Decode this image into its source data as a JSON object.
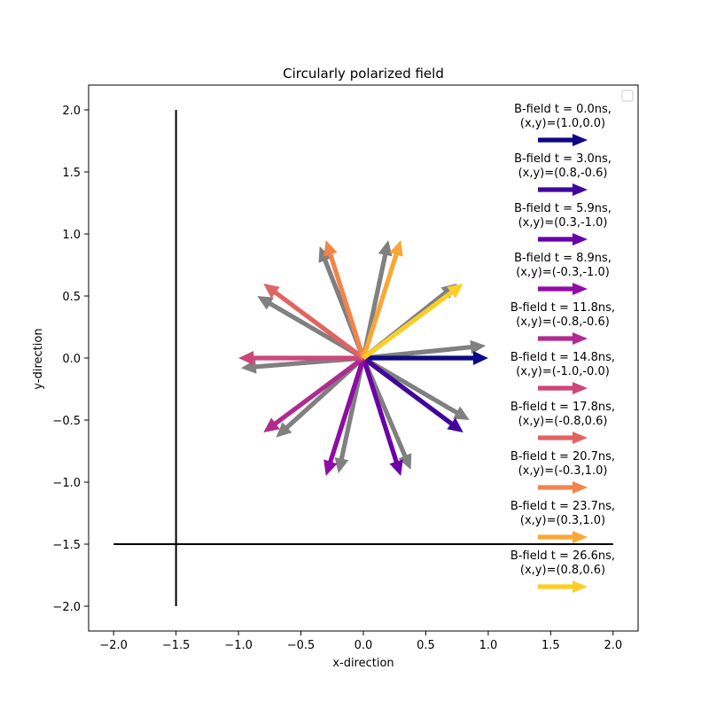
{
  "chart_data": {
    "type": "quiver",
    "title": "Circularly polarized field",
    "xlabel": "x-direction",
    "ylabel": "y-direction",
    "xlim": [
      -2.2,
      2.2
    ],
    "ylim": [
      -2.2,
      2.2
    ],
    "xticks": [
      -2.0,
      -1.5,
      -1.0,
      -0.5,
      0.0,
      0.5,
      1.0,
      1.5,
      2.0
    ],
    "yticks": [
      -2.0,
      -1.5,
      -1.0,
      -0.5,
      0.0,
      0.5,
      1.0,
      1.5,
      2.0
    ],
    "xtick_labels": [
      "−2.0",
      "−1.5",
      "−1.0",
      "−0.5",
      "0.0",
      "0.5",
      "1.0",
      "1.5",
      "2.0"
    ],
    "ytick_labels": [
      "−2.0",
      "−1.5",
      "−1.0",
      "−0.5",
      "0.0",
      "0.5",
      "1.0",
      "1.5",
      "2.0"
    ],
    "grid": false,
    "axis_lines": [
      {
        "x": [
          -1.5,
          -1.5
        ],
        "y": [
          -2.0,
          2.0
        ],
        "color": "#000000"
      },
      {
        "x": [
          -2.0,
          2.0
        ],
        "y": [
          -1.5,
          -1.5
        ],
        "color": "#000000"
      }
    ],
    "gray_arrows": [
      {
        "u": 0.98,
        "v": 0.1
      },
      {
        "u": 0.75,
        "v": 0.6
      },
      {
        "u": 0.2,
        "v": 0.95
      },
      {
        "u": -0.35,
        "v": 0.9
      },
      {
        "u": -0.85,
        "v": 0.5
      },
      {
        "u": -0.98,
        "v": -0.08
      },
      {
        "u": -0.7,
        "v": -0.64
      },
      {
        "u": -0.2,
        "v": -0.93
      },
      {
        "u": 0.38,
        "v": -0.9
      },
      {
        "u": 0.85,
        "v": -0.5
      }
    ],
    "gray_color": "#808080",
    "series": [
      {
        "name": "B-field t = 0.0ns,\n(x,y)=(1.0,0.0)",
        "line1": "B-field t = 0.0ns,",
        "line2": "(x,y)=(1.0,0.0)",
        "u": 1.0,
        "v": 0.0,
        "color": "#0d0887"
      },
      {
        "name": "B-field t = 3.0ns,\n(x,y)=(0.8,-0.6)",
        "line1": "B-field t = 3.0ns,",
        "line2": "(x,y)=(0.8,-0.6)",
        "u": 0.8,
        "v": -0.6,
        "color": "#41049d"
      },
      {
        "name": "B-field t = 5.9ns,\n(x,y)=(0.3,-1.0)",
        "line1": "B-field t = 5.9ns,",
        "line2": "(x,y)=(0.3,-1.0)",
        "u": 0.3,
        "v": -0.95,
        "color": "#6a00a8"
      },
      {
        "name": "B-field t = 8.9ns,\n(x,y)=(-0.3,-1.0)",
        "line1": "B-field t = 8.9ns,",
        "line2": "(x,y)=(-0.3,-1.0)",
        "u": -0.3,
        "v": -0.95,
        "color": "#8f0da4"
      },
      {
        "name": "B-field t = 11.8ns,\n(x,y)=(-0.8,-0.6)",
        "line1": "B-field t = 11.8ns,",
        "line2": "(x,y)=(-0.8,-0.6)",
        "u": -0.8,
        "v": -0.6,
        "color": "#b12a90"
      },
      {
        "name": "B-field t = 14.8ns,\n(x,y)=(-1.0,-0.0)",
        "line1": "B-field t = 14.8ns,",
        "line2": "(x,y)=(-1.0,-0.0)",
        "u": -1.0,
        "v": 0.0,
        "color": "#cc4778"
      },
      {
        "name": "B-field t = 17.8ns,\n(x,y)=(-0.8,0.6)",
        "line1": "B-field t = 17.8ns,",
        "line2": "(x,y)=(-0.8,0.6)",
        "u": -0.8,
        "v": 0.6,
        "color": "#e16462"
      },
      {
        "name": "B-field t = 20.7ns,\n(x,y)=(-0.3,1.0)",
        "line1": "B-field t = 20.7ns,",
        "line2": "(x,y)=(-0.3,1.0)",
        "u": -0.3,
        "v": 0.95,
        "color": "#f2844b"
      },
      {
        "name": "B-field t = 23.7ns,\n(x,y)=(0.3,1.0)",
        "line1": "B-field t = 23.7ns,",
        "line2": "(x,y)=(0.3,1.0)",
        "u": 0.3,
        "v": 0.95,
        "color": "#fca636"
      },
      {
        "name": "B-field t = 26.6ns,\n(x,y)=(0.8,0.6)",
        "line1": "B-field t = 26.6ns,",
        "line2": "(x,y)=(0.8,0.6)",
        "u": 0.8,
        "v": 0.6,
        "color": "#fcce25"
      }
    ],
    "legend_position": "right"
  }
}
